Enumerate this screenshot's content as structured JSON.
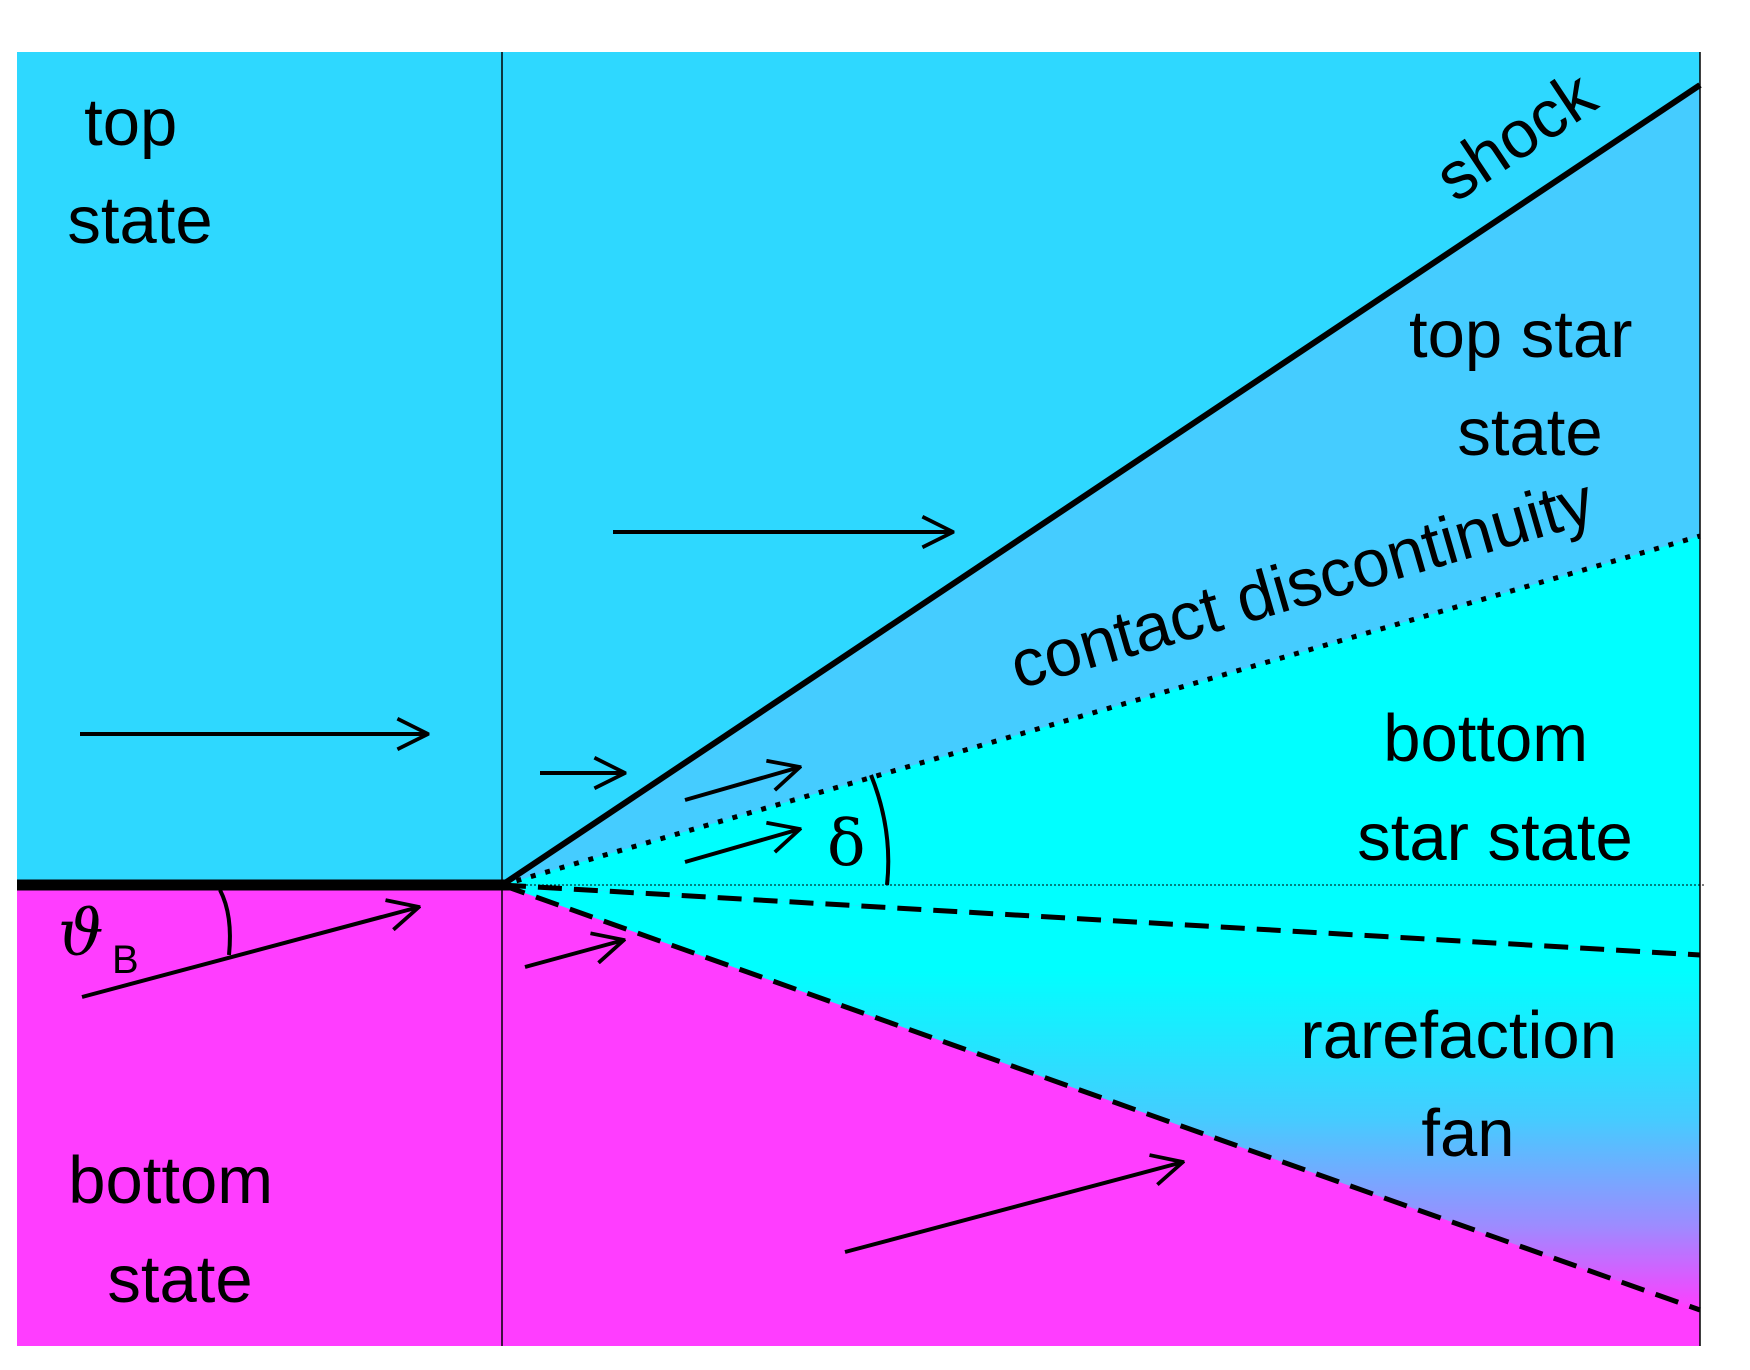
{
  "labels": {
    "top_state": [
      "top",
      "state"
    ],
    "bottom_state": [
      "bottom",
      "state"
    ],
    "shock": "shock",
    "contact_discontinuity": "contact discontinuity",
    "top_star_state": [
      "top star",
      "state"
    ],
    "bottom_star_state": [
      "bottom",
      "star state"
    ],
    "rarefaction_fan": [
      "rarefaction",
      "fan"
    ],
    "theta": "ϑ",
    "theta_subscript": "B",
    "delta": "δ"
  },
  "colors": {
    "top_state": "#2ed8ff",
    "top_star_state": "#45ccff",
    "bottom_star_state": "#00ffff",
    "bottom_state": "#ff3dff",
    "lines": "#000000"
  }
}
